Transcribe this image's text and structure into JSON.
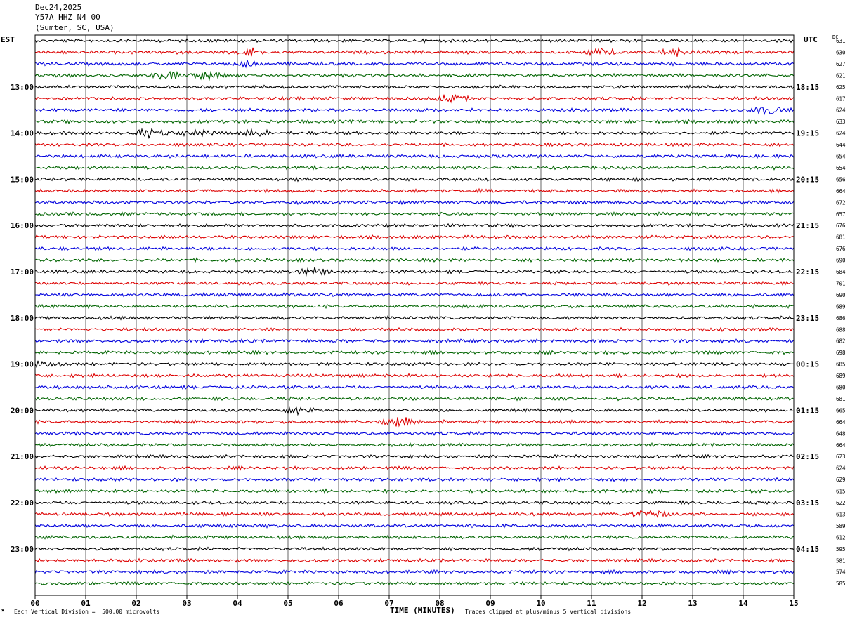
{
  "header": {
    "date": "Dec24,2025",
    "station": "Y57A HHZ N4 00",
    "location": "(Sumter, SC, USA)"
  },
  "left_tz": "EST",
  "right_tz": "UTC",
  "dc_label": "DC",
  "footer": {
    "scale_note": "Each Vertical Division =  500.00 microvolts",
    "xlabel": "TIME (MINUTES)",
    "clip_note": "Traces clipped at plus/minus 5 vertical divisions"
  },
  "chart_data": {
    "type": "line",
    "title": "",
    "xlabel": "TIME (MINUTES)",
    "xlim": [
      0,
      15
    ],
    "x_ticks": [
      "00",
      "01",
      "02",
      "03",
      "04",
      "05",
      "06",
      "07",
      "08",
      "09",
      "10",
      "11",
      "12",
      "13",
      "14",
      "15"
    ],
    "grid": "vertical lines each minute",
    "trace_colors": [
      "#000000",
      "#dd0000",
      "#0000dd",
      "#006400"
    ],
    "left_time_labels": [
      "13:00",
      "14:00",
      "15:00",
      "16:00",
      "17:00",
      "18:00",
      "19:00",
      "20:00",
      "21:00",
      "22:00",
      "23:00"
    ],
    "right_time_labels": [
      "18:15",
      "19:15",
      "20:15",
      "21:15",
      "22:15",
      "23:15",
      "00:15",
      "01:15",
      "02:15",
      "03:15",
      "04:15"
    ],
    "dc_offsets": [
      631,
      630,
      627,
      621,
      625,
      617,
      624,
      633,
      624,
      644,
      654,
      654,
      656,
      664,
      672,
      657,
      676,
      681,
      676,
      690,
      684,
      701,
      690,
      689,
      686,
      688,
      682,
      698,
      685,
      689,
      680,
      681,
      665,
      664,
      648,
      664,
      623,
      624,
      629,
      615,
      622,
      613,
      589,
      612,
      595,
      581,
      574,
      585
    ],
    "events": [
      {
        "trace": 1,
        "minute": 4.2,
        "amp": 3
      },
      {
        "trace": 1,
        "minute": 11.2,
        "amp": 3
      },
      {
        "trace": 1,
        "minute": 12.7,
        "amp": 3
      },
      {
        "trace": 2,
        "minute": 4.2,
        "amp": 2.5
      },
      {
        "trace": 3,
        "minute": 2.6,
        "amp": 4
      },
      {
        "trace": 3,
        "minute": 3.4,
        "amp": 4
      },
      {
        "trace": 5,
        "minute": 8.2,
        "amp": 3
      },
      {
        "trace": 6,
        "minute": 14.5,
        "amp": 5
      },
      {
        "trace": 8,
        "minute": 2.3,
        "amp": 6
      },
      {
        "trace": 8,
        "minute": 3.2,
        "amp": 3
      },
      {
        "trace": 8,
        "minute": 4.4,
        "amp": 3
      },
      {
        "trace": 20,
        "minute": 5.5,
        "amp": 4
      },
      {
        "trace": 28,
        "minute": 0.2,
        "amp": 2.5
      },
      {
        "trace": 32,
        "minute": 5.2,
        "amp": 3
      },
      {
        "trace": 33,
        "minute": 7.2,
        "amp": 4
      },
      {
        "trace": 41,
        "minute": 12.1,
        "amp": 4
      }
    ]
  }
}
